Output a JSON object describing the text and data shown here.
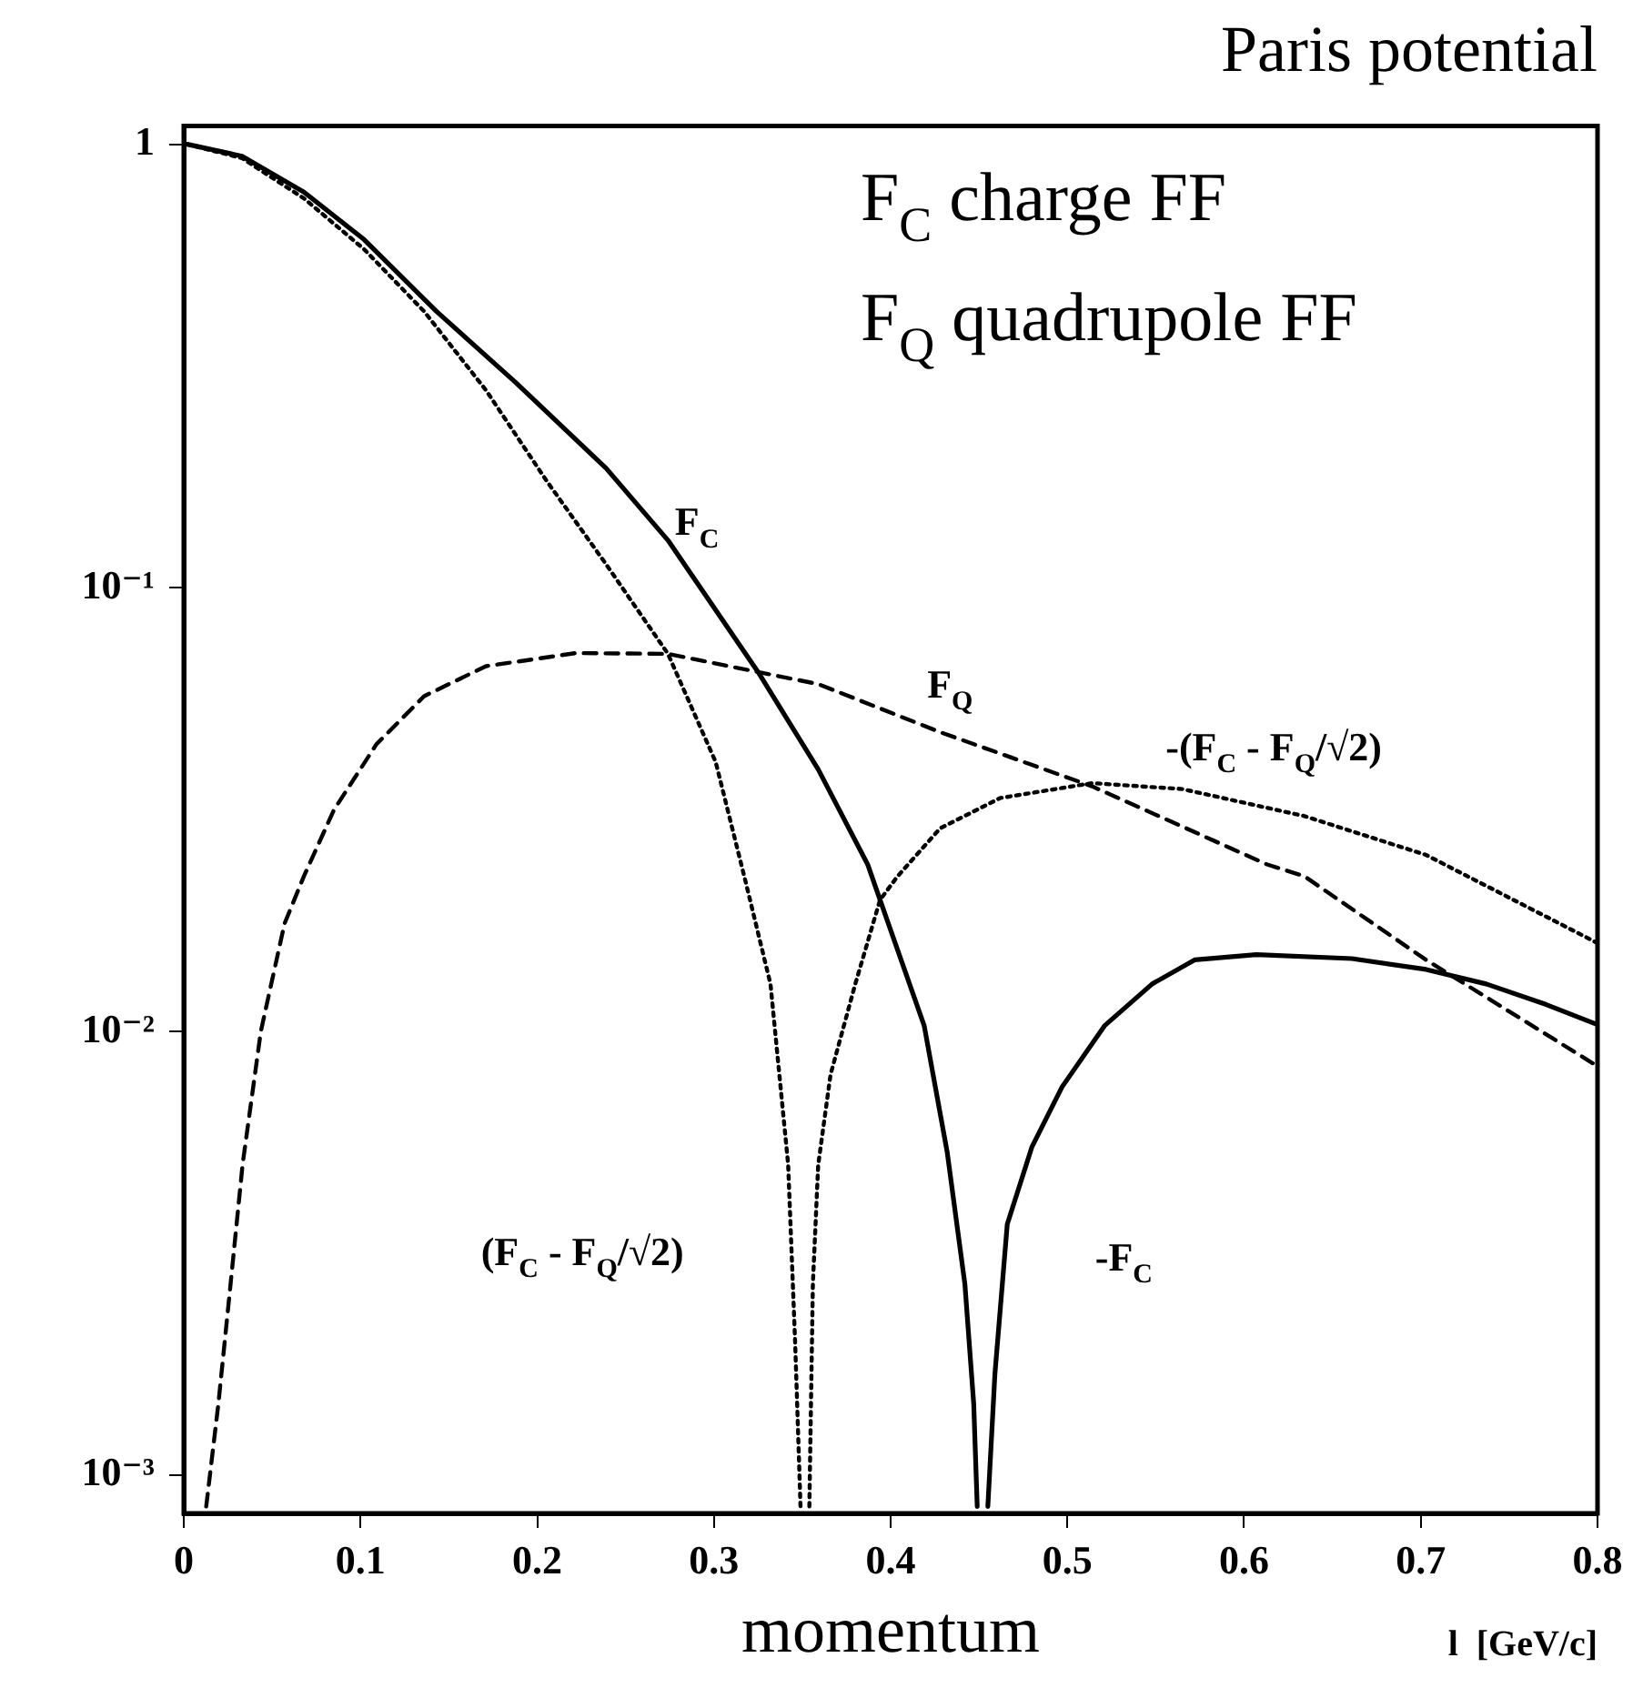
{
  "chart_data": {
    "type": "line",
    "title": "Paris potential",
    "xlabel": "momentum",
    "xlim": [
      0,
      0.8
    ],
    "xticks": [
      0,
      0.1,
      0.2,
      0.3,
      0.4,
      0.5,
      0.6,
      0.7,
      0.8
    ],
    "ylim": [
      0.00082,
      1.1
    ],
    "yticks": [
      {
        "value": 0.001,
        "label": "10⁻³"
      },
      {
        "value": 0.01,
        "label": "10⁻²"
      },
      {
        "value": 0.1,
        "label": "10⁻¹"
      },
      {
        "value": 1,
        "label": "1"
      }
    ],
    "log": "y",
    "grid": false,
    "legend": false,
    "marker": "none",
    "series": [
      {
        "name": "F$_{C}$",
        "color": "#000000",
        "line_style": "solid",
        "x": [
          0.002,
          0.033,
          0.068,
          0.102,
          0.143,
          0.188,
          0.239,
          0.274,
          0.325,
          0.359,
          0.387,
          0.394,
          0.419,
          0.432,
          0.442,
          0.447,
          0.449
        ],
        "values": [
          1.0,
          0.94,
          0.78,
          0.61,
          0.42,
          0.29,
          0.186,
          0.128,
          0.0646,
          0.039,
          0.0238,
          0.0198,
          0.0103,
          0.00535,
          0.0027,
          0.00145,
          0.00085
        ]
      },
      {
        "name": "-F$_{C}$",
        "color": "#000000",
        "line_style": "solid",
        "x": [
          0.455,
          0.459,
          0.466,
          0.48,
          0.497,
          0.521,
          0.548,
          0.572,
          0.607,
          0.661,
          0.703,
          0.737,
          0.771,
          0.799
        ],
        "values": [
          0.00085,
          0.00169,
          0.00368,
          0.0055,
          0.0075,
          0.0103,
          0.0128,
          0.0145,
          0.0149,
          0.0146,
          0.0138,
          0.0128,
          0.0115,
          0.0104
        ]
      },
      {
        "name": "F$_{Q}$",
        "color": "#000000",
        "line_style": "dashed",
        "x": [
          0.0127,
          0.0196,
          0.0265,
          0.0333,
          0.0436,
          0.057,
          0.068,
          0.085,
          0.109,
          0.136,
          0.171,
          0.222,
          0.274,
          0.325,
          0.359,
          0.428,
          0.514,
          0.613,
          0.634,
          0.703,
          0.799
        ],
        "values": [
          0.00085,
          0.00145,
          0.0027,
          0.00502,
          0.01,
          0.0175,
          0.0224,
          0.0316,
          0.0444,
          0.057,
          0.0666,
          0.0713,
          0.071,
          0.0646,
          0.0607,
          0.0473,
          0.0357,
          0.0238,
          0.0224,
          0.0145,
          0.0084
        ]
      },
      {
        "name": "(F$_{C}$ - F$_{Q}$/√2)",
        "color": "#000000",
        "line_style": "dotted",
        "x": [
          0.002,
          0.033,
          0.068,
          0.102,
          0.136,
          0.171,
          0.205,
          0.239,
          0.274,
          0.301,
          0.318,
          0.332,
          0.342,
          0.346,
          0.349
        ],
        "values": [
          1.0,
          0.93,
          0.755,
          0.58,
          0.42,
          0.279,
          0.175,
          0.113,
          0.071,
          0.0405,
          0.0217,
          0.0128,
          0.00502,
          0.00197,
          0.00085
        ]
      },
      {
        "name": "-(F$_{C}$ - F$_{Q}$/√2)",
        "color": "#000000",
        "line_style": "dotted",
        "x": [
          0.354,
          0.356,
          0.359,
          0.366,
          0.38,
          0.394,
          0.404,
          0.428,
          0.462,
          0.514,
          0.565,
          0.634,
          0.703,
          0.799
        ],
        "values": [
          0.00085,
          0.0027,
          0.005,
          0.008,
          0.0128,
          0.0198,
          0.0224,
          0.0287,
          0.0336,
          0.0363,
          0.0352,
          0.0306,
          0.025,
          0.0159
        ]
      }
    ],
    "annotations": [
      "F$_{C}$ charge FF",
      "F$_{Q}$ quadrupole FF",
      "l  [GeV/c]"
    ]
  }
}
